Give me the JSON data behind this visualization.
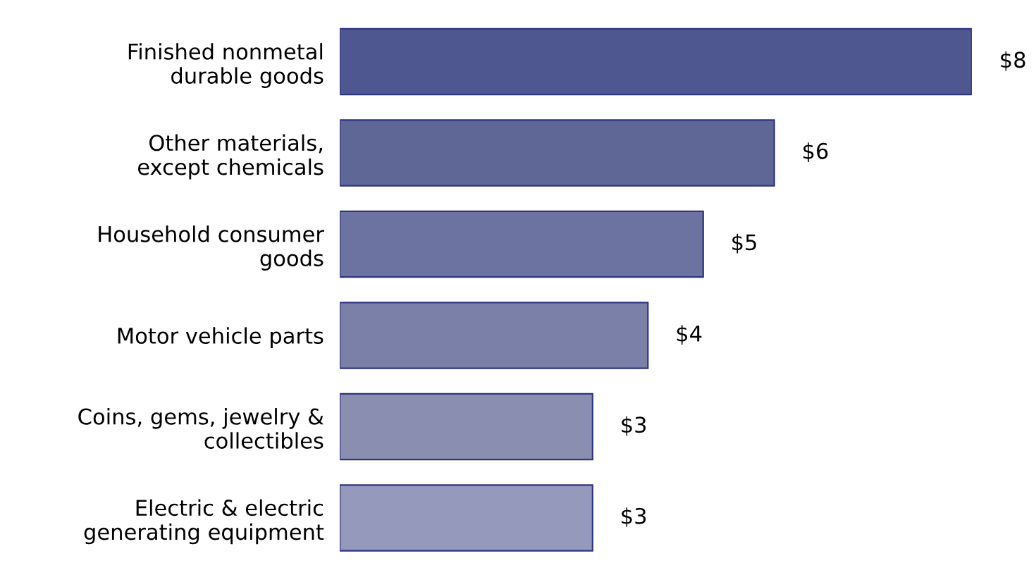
{
  "chart_data": {
    "type": "bar",
    "orientation": "horizontal",
    "tick_labels": "y",
    "categories": [
      "Finished nonmetal\ndurable goods",
      "Other materials,\nexcept chemicals",
      "Household consumer\ngoods",
      "Motor vehicle parts",
      "Coins, gems, jewelry &\ncollectibles",
      "Electric & electric\ngenerating equipment"
    ],
    "values": [
      8,
      5.5,
      4.6,
      3.9,
      3.2,
      3.2
    ],
    "value_labels": [
      "$8",
      "$6",
      "$5",
      "$4",
      "$3",
      "$3"
    ],
    "colors": [
      "#4f5790",
      "#5f6797",
      "#6c73a0",
      "#7a80a8",
      "#8a8fb2",
      "#9599bb"
    ],
    "grid": false,
    "legend": false
  }
}
